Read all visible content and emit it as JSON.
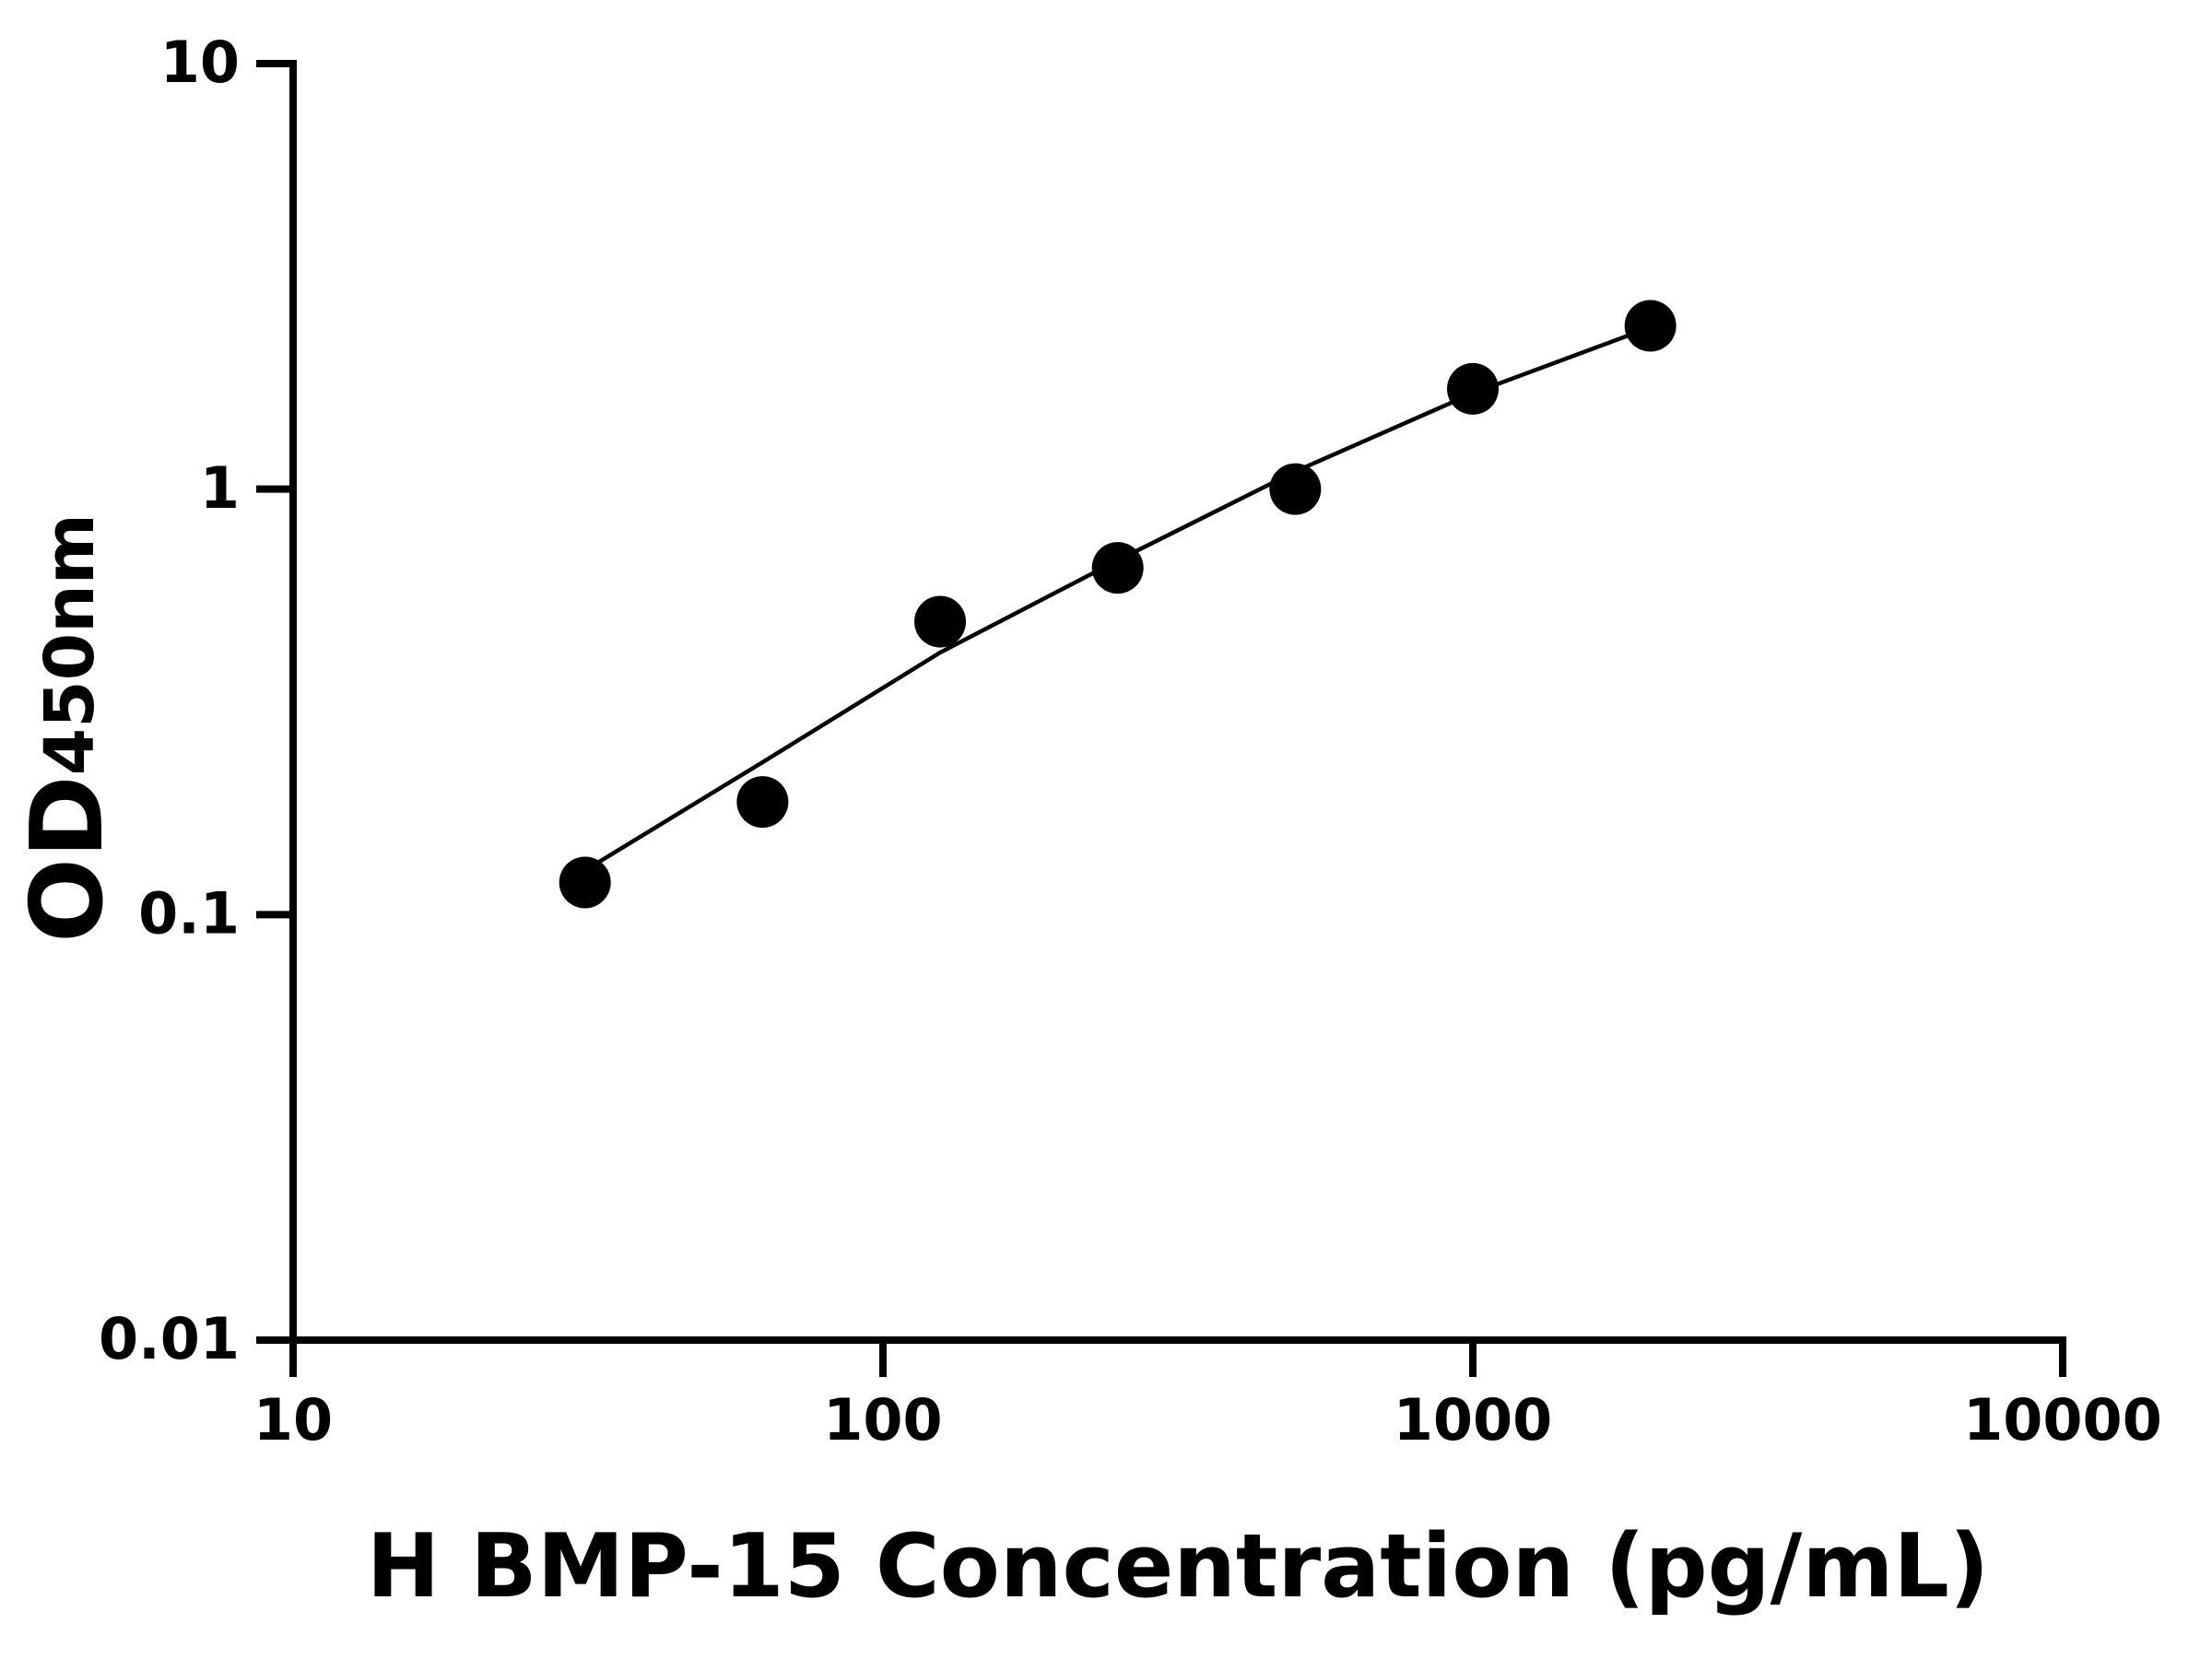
{
  "chart_data": {
    "type": "scatter",
    "xlabel": "H BMP-15 Concentration (pg/mL)",
    "ylabel": "OD",
    "ylabel_subscript": "450nm",
    "x": [
      31.25,
      62.5,
      125,
      250,
      500,
      1000,
      2000
    ],
    "series": [
      {
        "color": "#000000",
        "values": [
          0.119,
          0.184,
          0.488,
          0.653,
          1.0,
          1.72,
          2.42
        ]
      },
      {
        "type": "line",
        "color": "#000000",
        "values": [
          0.127,
          0.228,
          0.413,
          0.68,
          1.1,
          1.68,
          2.4
        ]
      }
    ],
    "xscale": "log",
    "yscale": "log",
    "xlim": [
      10,
      10000
    ],
    "xticks": [
      10,
      100,
      1000,
      10000
    ],
    "ylim": [
      0.01,
      10
    ],
    "yticks": [
      0.01,
      0.1,
      1,
      10
    ]
  }
}
